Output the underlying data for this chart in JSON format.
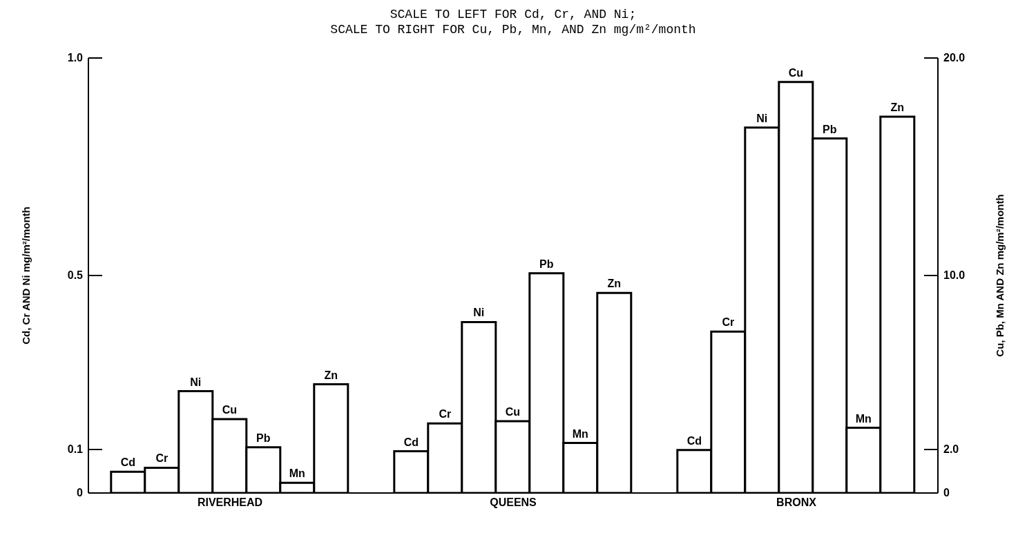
{
  "chart_data": {
    "type": "bar",
    "title": "SCALE TO LEFT FOR Cd, Cr, AND Ni;",
    "subtitle": "SCALE TO RIGHT FOR Cu, Pb, Mn, AND Zn mg/m²/month",
    "ylabel": "Cd, Cr AND Ni mg/m²/month",
    "y2label": "Cu, Pb, Mn AND Zn mg/m²/month",
    "categories": [
      "RIVERHEAD",
      "QUEENS",
      "BRONX"
    ],
    "series": [
      {
        "name": "Cd",
        "color": "#ffffff",
        "values": [
          0.049,
          0.096,
          0.099
        ]
      },
      {
        "name": "Cr",
        "color": "#ffffff",
        "values": [
          0.058,
          0.16,
          0.371
        ]
      },
      {
        "name": "Ni",
        "color": "#ffffff",
        "values": [
          0.234,
          0.393,
          0.84
        ]
      },
      {
        "name": "Cu",
        "color": "#ffffff",
        "axis": "y2",
        "values": [
          3.4,
          3.3,
          18.9
        ]
      },
      {
        "name": "Pb",
        "color": "#ffffff",
        "axis": "y2",
        "values": [
          2.1,
          10.1,
          16.3
        ]
      },
      {
        "name": "Mn",
        "color": "#ffffff",
        "axis": "y2",
        "values": [
          0.47,
          2.3,
          3.0
        ]
      },
      {
        "name": "Zn",
        "color": "#ffffff",
        "axis": "y2",
        "values": [
          5.0,
          9.2,
          17.3
        ]
      }
    ],
    "ylim": [
      0,
      1
    ],
    "yticks": [
      0,
      0.1,
      0.5,
      {
        "value": 1,
        "label": "1.0"
      }
    ],
    "y2lim": [
      0,
      20
    ],
    "y2ticks": [
      0,
      {
        "value": 2,
        "label": "2.0"
      },
      {
        "value": 10,
        "label": "10.0"
      },
      {
        "value": 20,
        "label": "20.0"
      }
    ],
    "grid": false,
    "legend": false
  }
}
